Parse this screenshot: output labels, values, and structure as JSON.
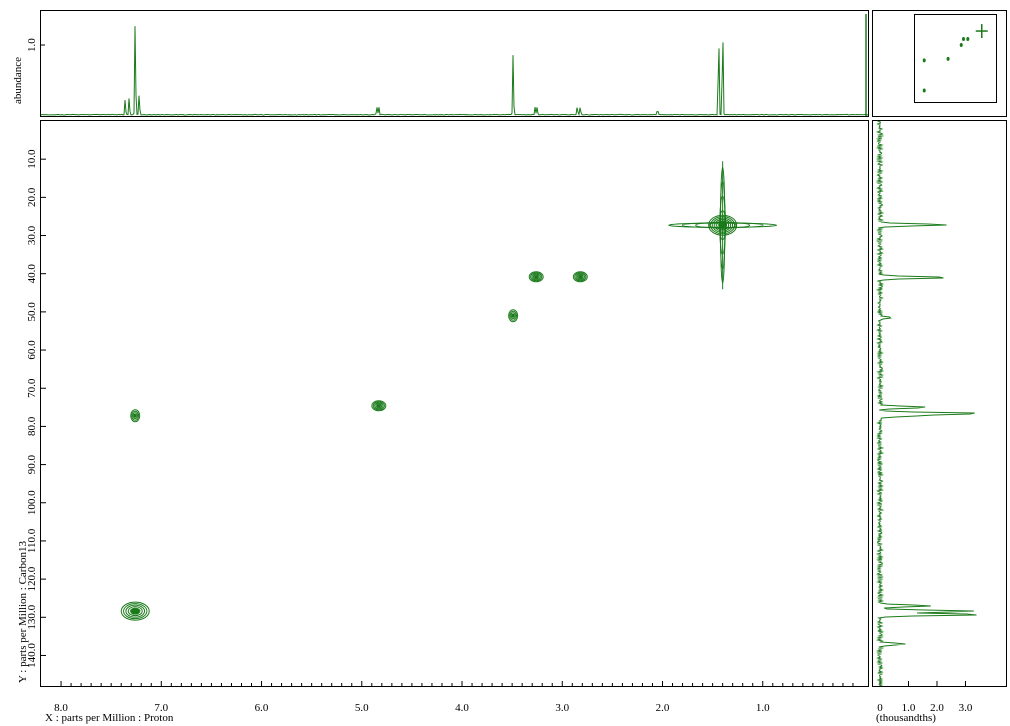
{
  "chart_data": {
    "type": "2d-nmr-hsqc",
    "x_axis": {
      "label": "X : parts per Million : Proton",
      "range": [
        8.2,
        -0.05
      ],
      "ticks": [
        8.0,
        7.0,
        6.0,
        5.0,
        4.0,
        3.0,
        2.0,
        1.0
      ],
      "tick_labels": [
        "8.0",
        "7.0",
        "6.0",
        "5.0",
        "4.0",
        "3.0",
        "2.0",
        "1.0"
      ]
    },
    "y_axis": {
      "label": "Y : parts per Million : Carbon13",
      "range": [
        0,
        148
      ],
      "ticks": [
        10,
        20,
        30,
        40,
        50,
        60,
        70,
        80,
        90,
        100,
        110,
        120,
        130,
        140
      ],
      "tick_labels": [
        "10.0",
        "20.0",
        "30.0",
        "40.0",
        "50.0",
        "60.0",
        "70.0",
        "80.0",
        "90.0",
        "100.0",
        "110.0",
        "120.0",
        "130.0",
        "140.0"
      ]
    },
    "top_projection": {
      "ylabel": "abundance",
      "ytick_labels": [
        "1.0"
      ],
      "peaks": [
        {
          "x": 7.36,
          "h": 0.16
        },
        {
          "x": 7.32,
          "h": 0.18
        },
        {
          "x": 7.26,
          "h": 1.0
        },
        {
          "x": 7.22,
          "h": 0.22
        },
        {
          "x": 4.85,
          "h": 0.08
        },
        {
          "x": 4.83,
          "h": 0.08
        },
        {
          "x": 3.49,
          "h": 0.62
        },
        {
          "x": 3.27,
          "h": 0.08
        },
        {
          "x": 3.25,
          "h": 0.08
        },
        {
          "x": 2.85,
          "h": 0.09
        },
        {
          "x": 2.82,
          "h": 0.09
        },
        {
          "x": 2.05,
          "h": 0.06
        },
        {
          "x": 1.44,
          "h": 0.93
        },
        {
          "x": 1.4,
          "h": 1.0
        }
      ]
    },
    "right_projection": {
      "xlabel": "(thousandths)",
      "xtick_labels": [
        "0",
        "1.0",
        "2.0",
        "3.0"
      ],
      "peaks": [
        {
          "y": 27.2,
          "v": 2.4
        },
        {
          "y": 41.0,
          "v": 2.5
        },
        {
          "y": 51.5,
          "v": 0.35
        },
        {
          "y": 75.0,
          "v": 1.7
        },
        {
          "y": 76.6,
          "v": 3.6
        },
        {
          "y": 77.2,
          "v": 1.3
        },
        {
          "y": 127.0,
          "v": 1.8
        },
        {
          "y": 128.4,
          "v": 3.4
        },
        {
          "y": 129.3,
          "v": 3.6
        },
        {
          "y": 137.0,
          "v": 0.9
        }
      ]
    },
    "cross_peaks": [
      {
        "x": 1.4,
        "y": 27.3,
        "size": "large-cross"
      },
      {
        "x": 3.26,
        "y": 40.8,
        "size": "medium"
      },
      {
        "x": 2.82,
        "y": 40.8,
        "size": "medium"
      },
      {
        "x": 3.49,
        "y": 51.0,
        "size": "diamond"
      },
      {
        "x": 4.83,
        "y": 74.6,
        "size": "medium"
      },
      {
        "x": 7.26,
        "y": 77.2,
        "size": "diamond"
      },
      {
        "x": 7.26,
        "y": 128.4,
        "size": "large"
      }
    ]
  },
  "colors": {
    "trace": "#1a7a1a",
    "frame": "#000000"
  }
}
